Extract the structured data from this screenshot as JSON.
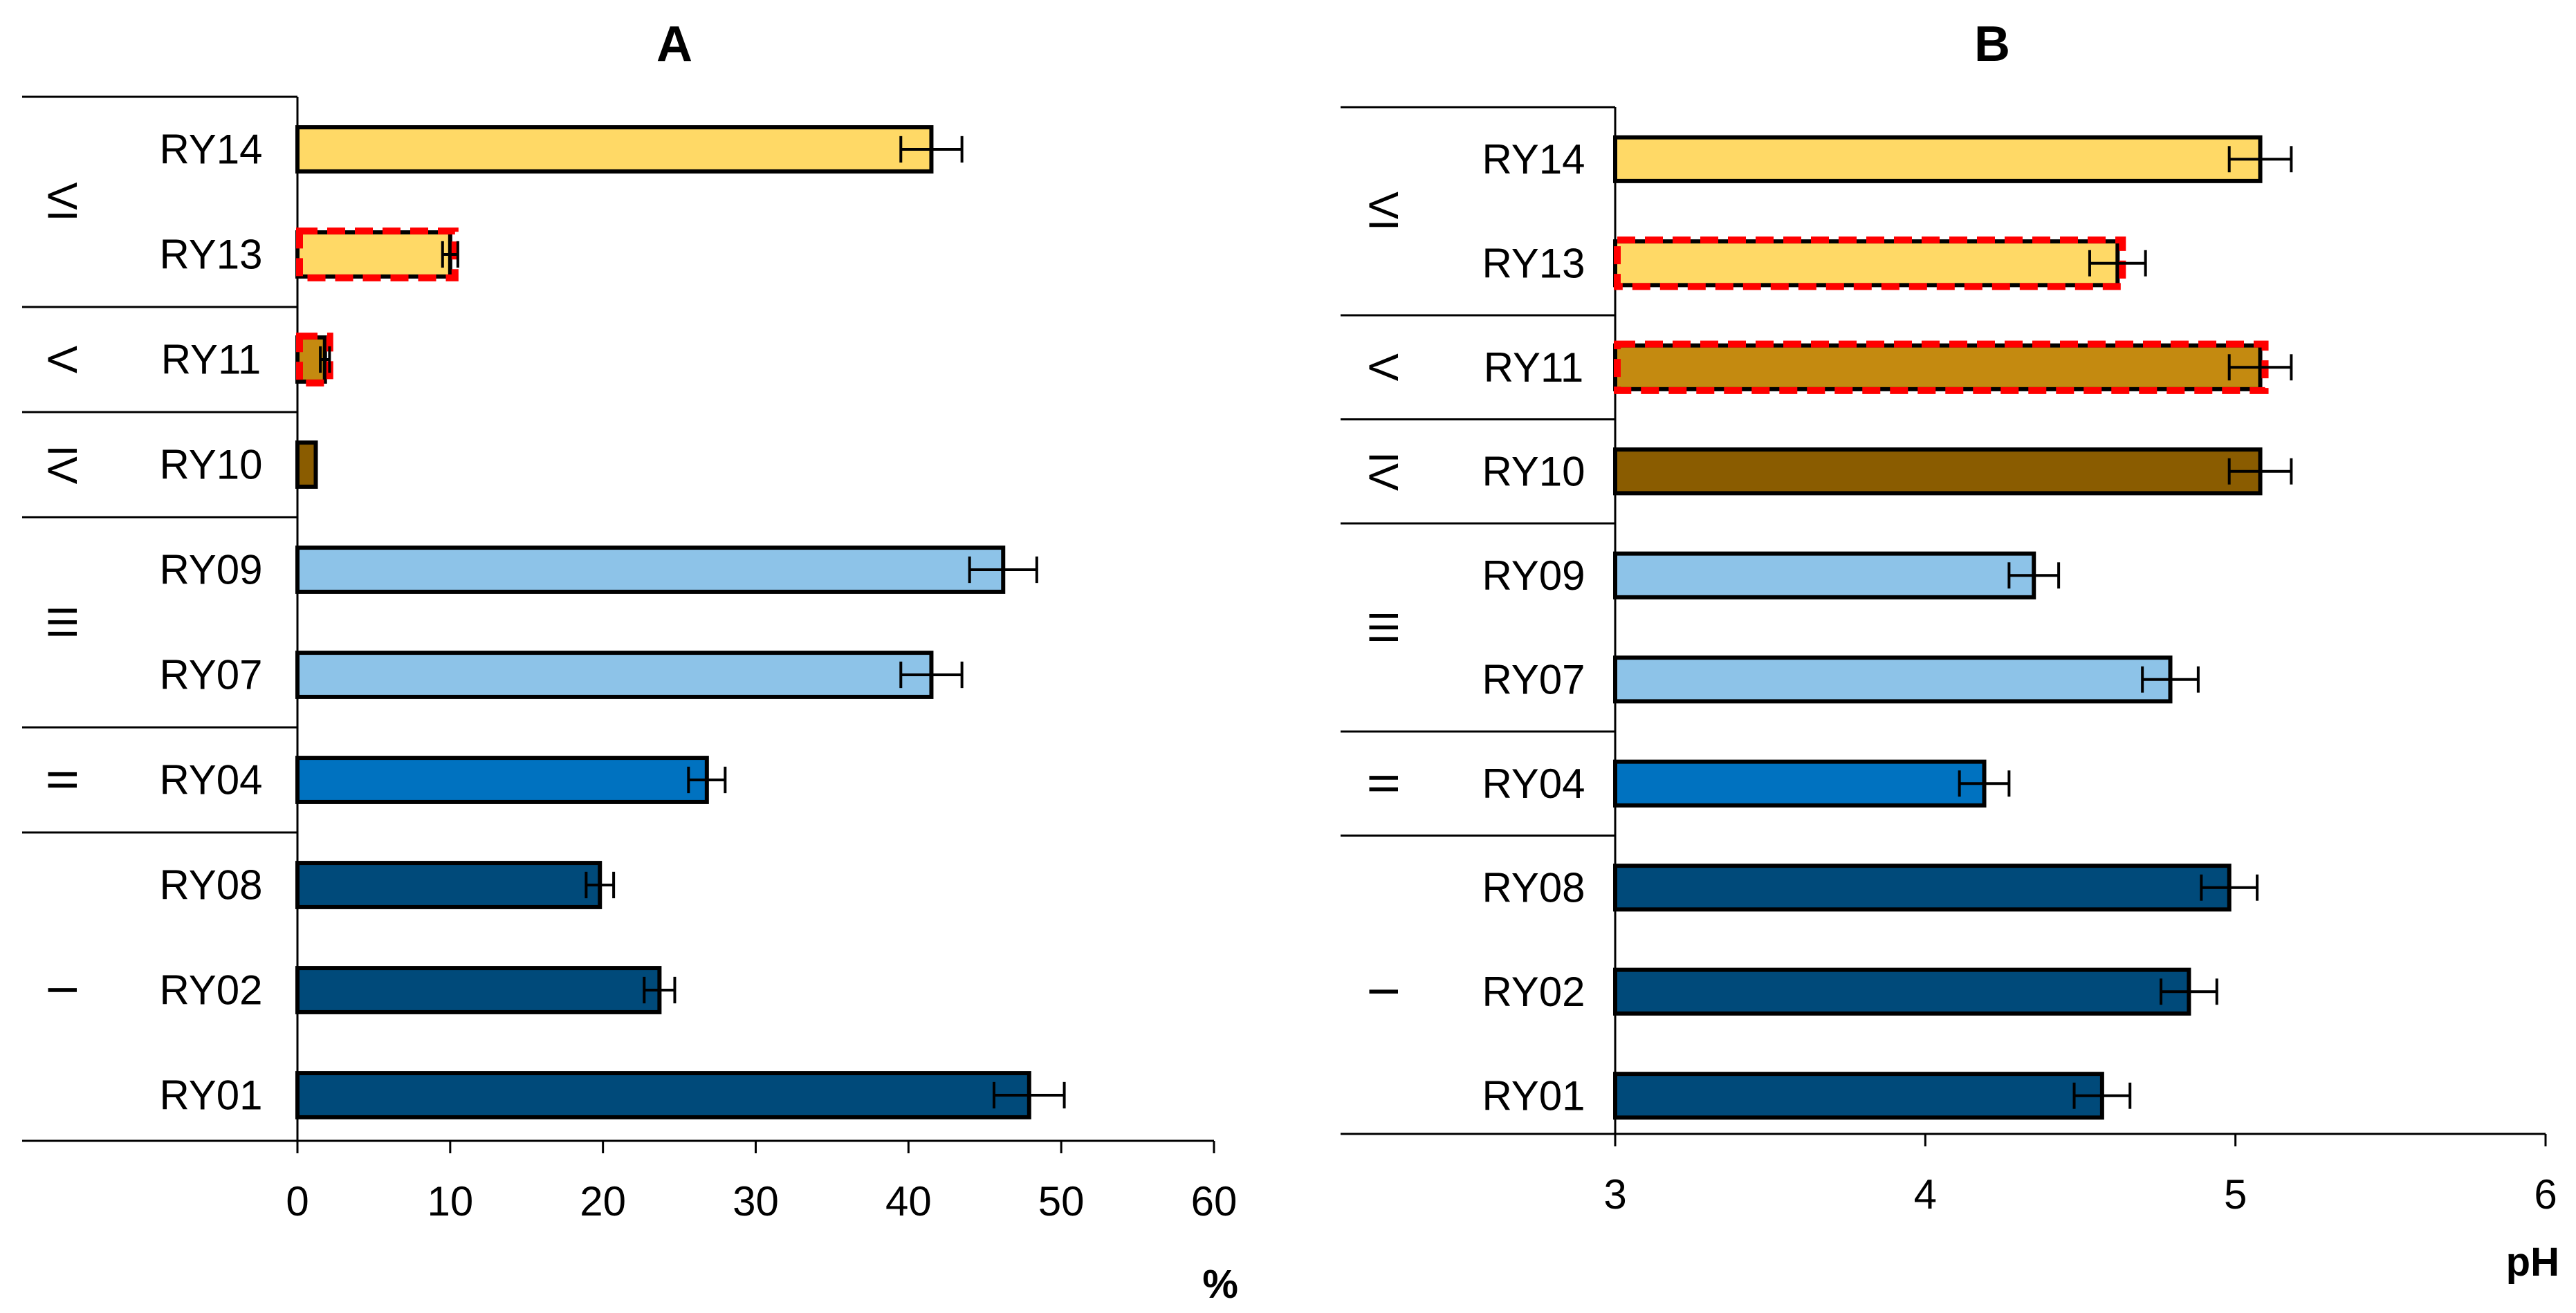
{
  "colors": {
    "I": "#004a7a",
    "II": "#0072c0",
    "III": "#8dc3e8",
    "IV": "#8a5c00",
    "V": "#c48a10",
    "VI": "#ffd966",
    "highlight": "#ff0000"
  },
  "chart_data": [
    {
      "type": "bar",
      "orientation": "horizontal",
      "title": "A",
      "xlabel": "%",
      "xlim": [
        0,
        60
      ],
      "xticks": [
        0,
        10,
        20,
        30,
        40,
        50,
        60
      ],
      "tick_labels": [
        "0",
        "10",
        "20",
        "30",
        "40",
        "50",
        "60"
      ],
      "groups": [
        {
          "label": "VI",
          "categories": [
            "RY14",
            "RY13"
          ]
        },
        {
          "label": "V",
          "categories": [
            "RY11"
          ]
        },
        {
          "label": "IV",
          "categories": [
            "RY10"
          ]
        },
        {
          "label": "III",
          "categories": [
            "RY09",
            "RY07"
          ]
        },
        {
          "label": "II",
          "categories": [
            "RY04"
          ]
        },
        {
          "label": "I",
          "categories": [
            "RY08",
            "RY02",
            "RY01"
          ]
        }
      ],
      "categories": [
        "RY14",
        "RY13",
        "RY11",
        "RY10",
        "RY09",
        "RY07",
        "RY04",
        "RY08",
        "RY02",
        "RY01"
      ],
      "group_of": [
        "VI",
        "VI",
        "V",
        "IV",
        "III",
        "III",
        "II",
        "I",
        "I",
        "I"
      ],
      "values": [
        41.5,
        10.0,
        1.8,
        1.2,
        46.2,
        41.5,
        26.8,
        19.8,
        23.7,
        47.9
      ],
      "errors": [
        2.0,
        0.5,
        0.3,
        0.0,
        2.2,
        2.0,
        1.2,
        0.9,
        1.0,
        2.3
      ],
      "highlighted": [
        "RY13",
        "RY11"
      ]
    },
    {
      "type": "bar",
      "orientation": "horizontal",
      "title": "B",
      "xlabel": "pH",
      "xlim": [
        3,
        6
      ],
      "xticks": [
        3,
        4,
        5,
        6
      ],
      "tick_labels": [
        "3",
        "4",
        "5",
        "6"
      ],
      "groups": [
        {
          "label": "VI",
          "categories": [
            "RY14",
            "RY13"
          ]
        },
        {
          "label": "V",
          "categories": [
            "RY11"
          ]
        },
        {
          "label": "IV",
          "categories": [
            "RY10"
          ]
        },
        {
          "label": "III",
          "categories": [
            "RY09",
            "RY07"
          ]
        },
        {
          "label": "II",
          "categories": [
            "RY04"
          ]
        },
        {
          "label": "I",
          "categories": [
            "RY08",
            "RY02",
            "RY01"
          ]
        }
      ],
      "categories": [
        "RY14",
        "RY13",
        "RY11",
        "RY10",
        "RY09",
        "RY07",
        "RY04",
        "RY08",
        "RY02",
        "RY01"
      ],
      "group_of": [
        "VI",
        "VI",
        "V",
        "IV",
        "III",
        "III",
        "II",
        "I",
        "I",
        "I"
      ],
      "values": [
        5.08,
        4.62,
        5.08,
        5.08,
        4.35,
        4.79,
        4.19,
        4.98,
        4.85,
        4.57
      ],
      "errors": [
        0.1,
        0.09,
        0.1,
        0.1,
        0.08,
        0.09,
        0.08,
        0.09,
        0.09,
        0.09
      ],
      "highlighted": [
        "RY13",
        "RY11"
      ]
    }
  ]
}
